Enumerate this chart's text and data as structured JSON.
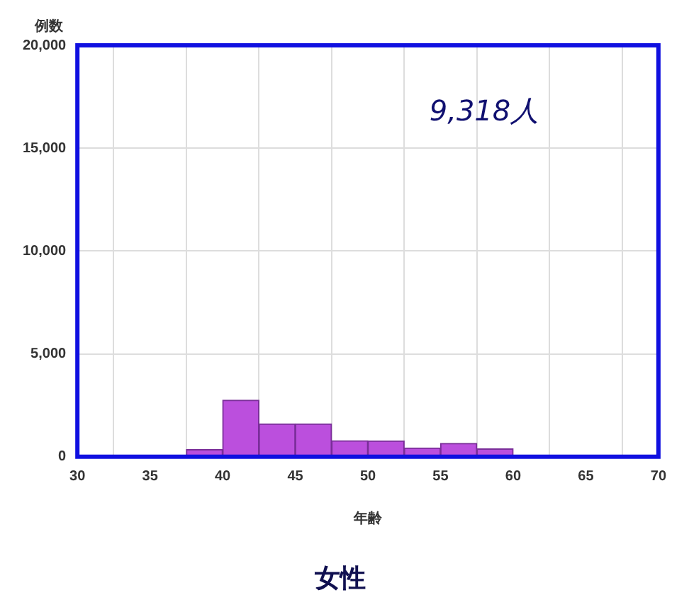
{
  "chart_data": {
    "type": "histogram",
    "title": "女性",
    "xlabel": "年齢",
    "ylabel": "例数",
    "annotations": [
      "9,318人"
    ],
    "bins": [
      37.5,
      40,
      42.5,
      45,
      47.5,
      50,
      52.5,
      55,
      57.5,
      60
    ],
    "values": [
      350,
      2750,
      1600,
      1600,
      780,
      770,
      430,
      650,
      380
    ],
    "color": "#bb4fdd",
    "xlim": [
      30,
      70
    ],
    "xticks": [
      30,
      35,
      40,
      45,
      50,
      55,
      60,
      65,
      70
    ],
    "ylim": [
      0,
      20000
    ],
    "yticks": [
      0,
      {
        "value": 5000,
        "label": "5,000"
      },
      {
        "value": 10000,
        "label": "10,000"
      },
      {
        "value": 15000,
        "label": "15,000"
      },
      {
        "value": 20000,
        "label": "20,000"
      }
    ],
    "grid": true
  }
}
